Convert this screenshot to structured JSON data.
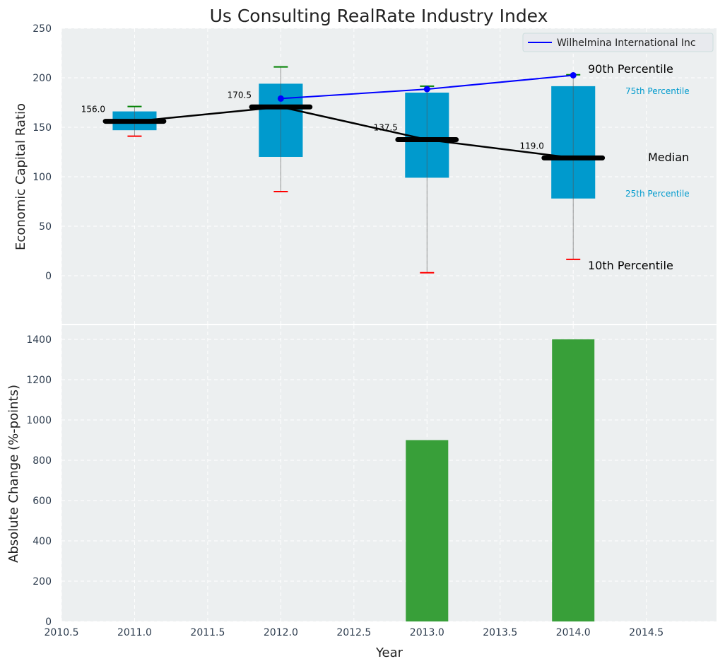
{
  "chart_data": [
    {
      "type": "box",
      "title": "Us Consulting RealRate Industry Index",
      "ylabel": "Economic Capital Ratio",
      "xlim": [
        2010.5,
        2014.98
      ],
      "ylim": [
        -48.6,
        250
      ],
      "yticks": [
        0,
        50,
        100,
        150,
        200,
        250
      ],
      "grid": true,
      "boxes": [
        {
          "x": 2011,
          "p10": 141,
          "p25": 147,
          "median": 156.0,
          "p75": 166,
          "p90": 171,
          "median_label": "156.0"
        },
        {
          "x": 2012,
          "p10": 85,
          "p25": 120,
          "median": 170.5,
          "p75": 194,
          "p90": 211,
          "median_label": "170.5"
        },
        {
          "x": 2013,
          "p10": 3,
          "p25": 99,
          "median": 137.5,
          "p75": 185,
          "p90": 191.5,
          "median_label": "137.5"
        },
        {
          "x": 2014,
          "p10": 16.5,
          "p25": 78,
          "median": 119.0,
          "p75": 191.5,
          "p90": 203,
          "median_label": "119.0"
        }
      ],
      "series": [
        {
          "name": "Wilhelmina International Inc",
          "x": [
            2012,
            2013,
            2014
          ],
          "values": [
            179,
            188.5,
            202.5
          ],
          "color": "#0000ff"
        }
      ],
      "legend": {
        "placement": "top-right",
        "entries": [
          "Wilhelmina International Inc"
        ]
      },
      "annotations": {
        "p90": "90th Percentile",
        "p75": "75th Percentile",
        "median": "Median",
        "p25": "25th Percentile",
        "p10": "10th Percentile"
      },
      "colors": {
        "box": "#009ACD",
        "median": "#000000",
        "upper_cap": "#008000",
        "lower_cap": "#ff0000",
        "background": "#ECEFF0"
      }
    },
    {
      "type": "bar",
      "ylabel": "Absolute Change (%-points)",
      "xlabel": "Year",
      "xlim": [
        2010.5,
        2014.98
      ],
      "ylim": [
        0,
        1470
      ],
      "xticks": [
        2010.5,
        2011.0,
        2011.5,
        2012.0,
        2012.5,
        2013.0,
        2013.5,
        2014.0,
        2014.5
      ],
      "xtick_labels": [
        "2010.5",
        "2011.0",
        "2011.5",
        "2012.0",
        "2012.5",
        "2013.0",
        "2013.5",
        "2014.0",
        "2014.5"
      ],
      "yticks": [
        0,
        200,
        400,
        600,
        800,
        1000,
        1200,
        1400
      ],
      "categories": [
        2013,
        2014
      ],
      "values": [
        900,
        1400
      ],
      "color": "#2E9A2E",
      "grid": true
    }
  ]
}
